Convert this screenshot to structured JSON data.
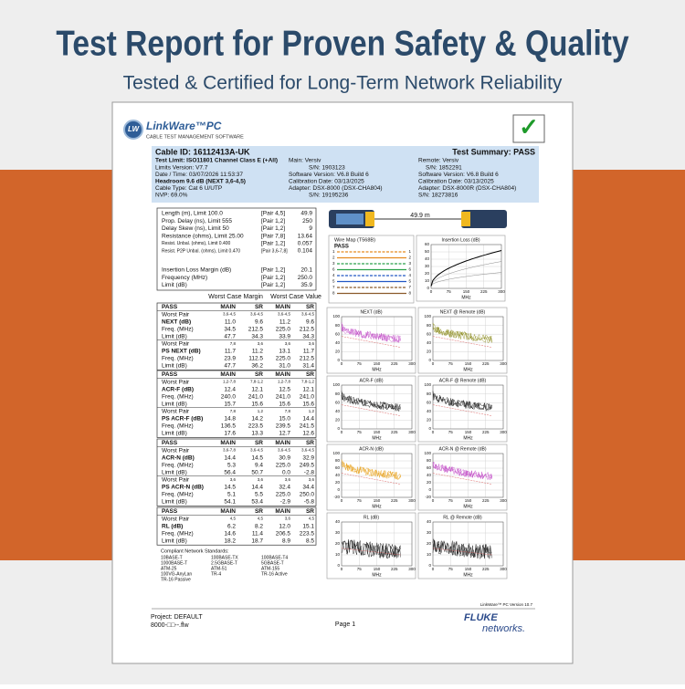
{
  "header": {
    "title": "Test Report for Proven Safety & Quality",
    "subtitle": "Tested & Certified for Long-Term Network Reliability"
  },
  "report": {
    "logo": {
      "badge": "LW",
      "name": "LinkWare™PC",
      "tagline": "CABLE TEST MANAGEMENT SOFTWARE"
    },
    "check": "✓",
    "info": {
      "cable_id": "Cable ID: 16112413A-UK",
      "summary": "Test Summary: PASS",
      "left": [
        "Test Limit: ISO11801 Channel Class E (+All)",
        "Limits Version: V7.7",
        "Date / Time: 03/07/2026 11:53:37",
        "Headroom 9.6 dB (NEXT 3,6-4,5)",
        "Cable Type: Cat 6 U/UTP",
        "NVP: 69.0%"
      ],
      "main": [
        "Main: Versiv",
        "S/N: 1903123",
        "Software Version: V6.8 Build 6",
        "Calibration Date: 03/13/2025",
        "Adapter: DSX-8000 (DSX-CHA804)",
        "S/N: 19195236"
      ],
      "remote": [
        "Remote: Versiv",
        "S/N: 1852291",
        "Software Version: V6.8 Build 6",
        "Calibration Date: 03/13/2025",
        "Adapter: DSX-8000R (DSX-CHA804)",
        "S/N: 18273816"
      ]
    },
    "summary_top": [
      [
        "Length (m), Limit 100.0",
        "[Pair 4,5]",
        "49.9"
      ],
      [
        "Prop. Delay (ns), Limit 555",
        "[Pair 1,2]",
        "250"
      ],
      [
        "Delay Skew (ns), Limit 50",
        "[Pair 1,2]",
        "9"
      ],
      [
        "Resistance (ohms), Limit 25.00",
        "[Pair 7,8]",
        "13.64"
      ],
      [
        "Resist. Unbal. (ohms), Limit 0.400",
        "[Pair 1,2]",
        "0.057"
      ],
      [
        "Resist. P2P Unbal. (ohms), Limit 0.470",
        "[Pair 3,6-7,8]",
        "0.104"
      ]
    ],
    "summary_bottom": [
      [
        "Insertion Loss Margin (dB)",
        "[Pair 1,2]",
        "20.1"
      ],
      [
        "Frequency (MHz)",
        "[Pair 1,2]",
        "250.0"
      ],
      [
        "Limit (dB)",
        "[Pair 1,2]",
        "35.9"
      ]
    ],
    "column_groups": [
      "Worst Case Margin",
      "Worst Case Value"
    ],
    "blocks": [
      [
        [
          "PASS",
          "MAIN",
          "SR",
          "MAIN",
          "SR"
        ],
        [
          "Worst Pair",
          "3,6-4,5",
          "3,6-4,5",
          "3,6-4,5",
          "3,6-4,5"
        ],
        [
          "NEXT (dB)",
          "11.0",
          "9.6",
          "11.2",
          "9.6"
        ],
        [
          "Freq. (MHz)",
          "34.5",
          "212.5",
          "225.0",
          "212.5"
        ],
        [
          "Limit (dB)",
          "47.7",
          "34.3",
          "33.9",
          "34.3"
        ],
        [
          "Worst Pair",
          "7,8",
          "3,6",
          "3,6",
          "3,6"
        ],
        [
          "PS NEXT (dB)",
          "11.7",
          "11.2",
          "13.1",
          "11.7"
        ],
        [
          "Freq. (MHz)",
          "23.9",
          "112.5",
          "225.0",
          "212.5"
        ],
        [
          "Limit (dB)",
          "47.7",
          "36.2",
          "31.0",
          "31.4"
        ]
      ],
      [
        [
          "PASS",
          "MAIN",
          "SR",
          "MAIN",
          "SR"
        ],
        [
          "Worst Pair",
          "1,2-7,8",
          "7,8-1,2",
          "1,2-7,8",
          "7,8-1,2"
        ],
        [
          "ACR-F (dB)",
          "12.4",
          "12.1",
          "12.5",
          "12.1"
        ],
        [
          "Freq. (MHz)",
          "240.0",
          "241.0",
          "241.0",
          "241.0"
        ],
        [
          "Limit (dB)",
          "15.7",
          "15.6",
          "15.6",
          "15.6"
        ],
        [
          "Worst Pair",
          "7,8",
          "1,2",
          "7,8",
          "1,2"
        ],
        [
          "PS ACR-F (dB)",
          "14.8",
          "14.2",
          "15.0",
          "14.4"
        ],
        [
          "Freq. (MHz)",
          "136.5",
          "223.5",
          "239.5",
          "241.5"
        ],
        [
          "Limit (dB)",
          "17.6",
          "13.3",
          "12.7",
          "12.6"
        ]
      ],
      [
        [
          "PASS",
          "MAIN",
          "SR",
          "MAIN",
          "SR"
        ],
        [
          "Worst Pair",
          "3,6-7,8",
          "3,6-4,5",
          "3,6-4,5",
          "3,6-4,5"
        ],
        [
          "ACR-N (dB)",
          "14.4",
          "14.5",
          "30.9",
          "32.9"
        ],
        [
          "Freq. (MHz)",
          "5.3",
          "9.4",
          "225.0",
          "249.5"
        ],
        [
          "Limit (dB)",
          "56.4",
          "50.7",
          "0.0",
          "-2.8"
        ],
        [
          "Worst Pair",
          "3,6",
          "3,6",
          "3,6",
          "3,6"
        ],
        [
          "PS ACR-N (dB)",
          "14.5",
          "14.4",
          "32.4",
          "34.4"
        ],
        [
          "Freq. (MHz)",
          "5.1",
          "5.5",
          "225.0",
          "250.0"
        ],
        [
          "Limit (dB)",
          "54.1",
          "53.4",
          "-2.9",
          "-5.8"
        ]
      ],
      [
        [
          "PASS",
          "MAIN",
          "SR",
          "MAIN",
          "SR"
        ],
        [
          "Worst Pair",
          "4,5",
          "4,5",
          "3,6",
          "4,5"
        ],
        [
          "RL (dB)",
          "6.2",
          "8.2",
          "12.0",
          "15.1"
        ],
        [
          "Freq. (MHz)",
          "14.6",
          "11.4",
          "206.5",
          "223.5"
        ],
        [
          "Limit (dB)",
          "18.2",
          "18.7",
          "8.9",
          "8.5"
        ]
      ]
    ],
    "standards": {
      "title": "Compliant Network Standards:",
      "items": [
        "10BASE-T",
        "100BASE-TX",
        "100BASE-T4",
        "1000BASE-T",
        "2.5GBASE-T",
        "5GBASE-T",
        "ATM-25",
        "ATM-51",
        "ATM-155",
        "100VG-AnyLan",
        "TR-4",
        "TR-16 Active",
        "TR-16 Passive"
      ]
    },
    "cable_length": "49.9 m",
    "wire_map": {
      "title": "Wire Map (T568B)",
      "result": "PASS",
      "pins": [
        "1",
        "2",
        "3",
        "6",
        "4",
        "5",
        "7",
        "8"
      ]
    },
    "graphs": [
      {
        "title": "Insertion Loss (dB)",
        "color": "#000000",
        "yticks": [
          "60",
          "50",
          "40",
          "30",
          "20",
          "10",
          "0"
        ],
        "xticks": [
          "0",
          "75",
          "150",
          "225",
          "300"
        ],
        "xlabel": "MHz"
      },
      {
        "title": "NEXT (dB)",
        "color": "#c34fc8",
        "yticks": [
          "100",
          "80",
          "60",
          "40",
          "20",
          "0"
        ],
        "xticks": [
          "0",
          "75",
          "150",
          "225",
          "300"
        ],
        "xlabel": "MHz"
      },
      {
        "title": "NEXT @ Remote (dB)",
        "color": "#8c8c1e",
        "yticks": [
          "100",
          "80",
          "60",
          "40",
          "20",
          "0"
        ],
        "xticks": [
          "0",
          "75",
          "150",
          "225",
          "300"
        ],
        "xlabel": "MHz"
      },
      {
        "title": "ACR-F (dB)",
        "color": "#111111",
        "yticks": [
          "100",
          "80",
          "60",
          "40",
          "20",
          "0"
        ],
        "xticks": [
          "0",
          "75",
          "150",
          "225",
          "300"
        ],
        "xlabel": "MHz"
      },
      {
        "title": "ACR-F @ Remote (dB)",
        "color": "#111111",
        "yticks": [
          "100",
          "80",
          "60",
          "40",
          "20",
          "0"
        ],
        "xticks": [
          "0",
          "75",
          "150",
          "225",
          "300"
        ],
        "xlabel": "MHz"
      },
      {
        "title": "ACR-N (dB)",
        "color": "#e9a21c",
        "yticks": [
          "100",
          "80",
          "60",
          "40",
          "20",
          "0",
          "-20"
        ],
        "xticks": [
          "0",
          "75",
          "150",
          "225",
          "300"
        ],
        "xlabel": "MHz"
      },
      {
        "title": "ACR-N @ Remote (dB)",
        "color": "#c34fc8",
        "yticks": [
          "100",
          "80",
          "60",
          "40",
          "20",
          "0",
          "-20"
        ],
        "xticks": [
          "0",
          "75",
          "150",
          "225",
          "300"
        ],
        "xlabel": "MHz"
      },
      {
        "title": "RL (dB)",
        "color": "#111111",
        "yticks": [
          "40",
          "30",
          "20",
          "10",
          "0"
        ],
        "xticks": [
          "0",
          "75",
          "150",
          "225",
          "300"
        ],
        "xlabel": "MHz"
      },
      {
        "title": "RL @ Remote (dB)",
        "color": "#111111",
        "yticks": [
          "40",
          "30",
          "20",
          "10",
          "0"
        ],
        "xticks": [
          "0",
          "75",
          "150",
          "225",
          "300"
        ],
        "xlabel": "MHz"
      }
    ],
    "footer": {
      "version": "LinkWare™ PC Version 10.7",
      "project": "Project: DEFAULT",
      "file": "8000-□□--.flw",
      "page": "Page 1",
      "brand": "FLUKE",
      "brand_sub": "networks."
    }
  }
}
